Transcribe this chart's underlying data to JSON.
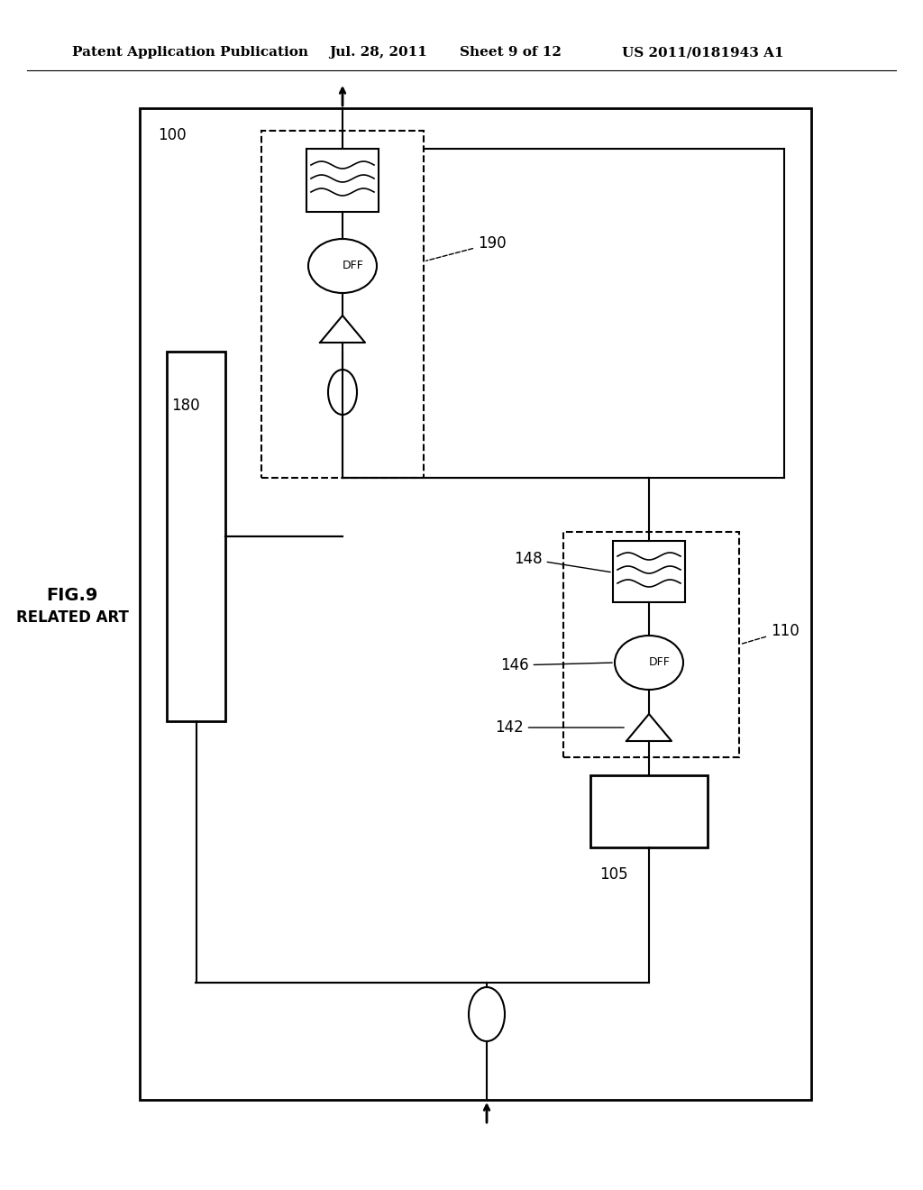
{
  "bg_color": "#ffffff",
  "header_text1": "Patent Application Publication",
  "header_text2": "Jul. 28, 2011",
  "header_text3": "Sheet 9 of 12",
  "header_text4": "US 2011/0181943 A1",
  "fig_label": "FIG.9",
  "fig_sublabel": "RELATED ART",
  "label_100": "100",
  "label_190": "190",
  "label_180": "180",
  "label_110": "110",
  "label_105": "105",
  "label_142": "142",
  "label_146": "146",
  "label_148": "148"
}
